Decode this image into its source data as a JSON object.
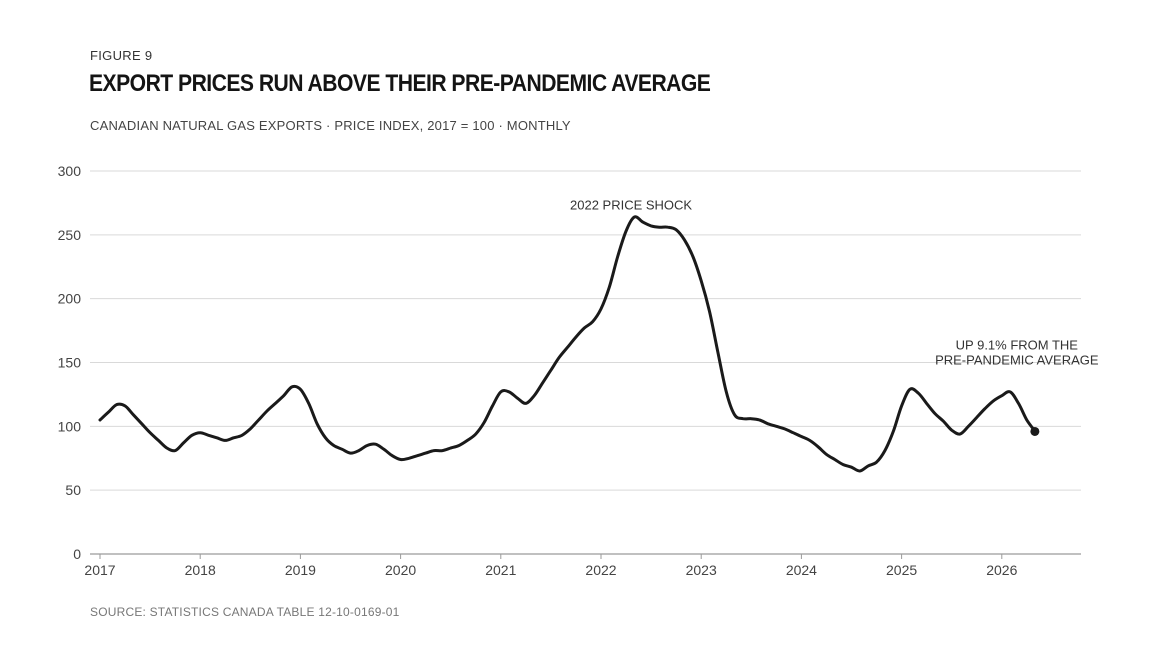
{
  "header": {
    "figure_label": "FIGURE 9",
    "title": "EXPORT PRICES RUN ABOVE THEIR PRE-PANDEMIC AVERAGE",
    "subtitle": "CANADIAN NATURAL GAS EXPORTS · PRICE INDEX, 2017 = 100 · MONTHLY"
  },
  "footer": {
    "source": "SOURCE: STATISTICS CANADA TABLE 12-10-0169-01"
  },
  "colors": {
    "line": "#1a1a1a",
    "grid": "#d9d9d9",
    "axis": "#9a9a9a",
    "tick_text": "#444444"
  },
  "chart_data": {
    "type": "line",
    "title": "EXPORT PRICES RUN ABOVE THEIR PRE-PANDEMIC AVERAGE",
    "subtitle": "CANADIAN NATURAL GAS EXPORTS · PRICE INDEX, 2017 = 100 · MONTHLY",
    "xlabel": "",
    "ylabel": "",
    "xlim": [
      2017.0,
      2027.8
    ],
    "ylim": [
      0,
      300
    ],
    "y_ticks": [
      0,
      50,
      100,
      150,
      200,
      250,
      300
    ],
    "x_ticks": [
      2017,
      2018,
      2019,
      2020,
      2021,
      2022,
      2023,
      2024,
      2025,
      2026
    ],
    "grid": "horizontal",
    "annotations": [
      {
        "text": "2022 PRICE SHOCK",
        "x": 2022.3,
        "y": 270
      },
      {
        "text_lines": [
          "UP 9.1% FROM THE",
          "PRE-PANDEMIC AVERAGE"
        ],
        "x": 2026.15,
        "y": 160
      }
    ],
    "end_marker": {
      "x": 2026.33,
      "y": 96
    },
    "series": [
      {
        "x": [
          2017.0,
          2017.083,
          2017.167,
          2017.25,
          2017.333,
          2017.417,
          2017.5,
          2017.583,
          2017.667,
          2017.75,
          2017.833,
          2017.917,
          2018.0,
          2018.083,
          2018.167,
          2018.25,
          2018.333,
          2018.417,
          2018.5,
          2018.583,
          2018.667,
          2018.75,
          2018.833,
          2018.917,
          2019.0,
          2019.083,
          2019.167,
          2019.25,
          2019.333,
          2019.417,
          2019.5,
          2019.583,
          2019.667,
          2019.75,
          2019.833,
          2019.917,
          2020.0,
          2020.083,
          2020.167,
          2020.25,
          2020.333,
          2020.417,
          2020.5,
          2020.583,
          2020.667,
          2020.75,
          2020.833,
          2020.917,
          2021.0,
          2021.083,
          2021.167,
          2021.25,
          2021.333,
          2021.417,
          2021.5,
          2021.583,
          2021.667,
          2021.75,
          2021.833,
          2021.917,
          2022.0,
          2022.083,
          2022.167,
          2022.25,
          2022.333,
          2022.417,
          2022.5,
          2022.583,
          2022.667,
          2022.75,
          2022.833,
          2022.917,
          2023.0,
          2023.083,
          2023.167,
          2023.25,
          2023.333,
          2023.417,
          2023.5,
          2023.583,
          2023.667,
          2023.75,
          2023.833,
          2023.917,
          2024.0,
          2024.083,
          2024.167,
          2024.25,
          2024.333,
          2024.417,
          2024.5,
          2024.583,
          2024.667,
          2024.75,
          2024.833,
          2024.917,
          2025.0,
          2025.083,
          2025.167,
          2025.25,
          2025.333,
          2025.417,
          2025.5,
          2025.583,
          2025.667,
          2025.75,
          2025.833,
          2025.917,
          2026.0,
          2026.083,
          2026.167,
          2026.25,
          2026.333
        ],
        "values": [
          105,
          111,
          117,
          116,
          109,
          102,
          95,
          89,
          83,
          81,
          87,
          93,
          95,
          93,
          91,
          89,
          91,
          93,
          98,
          105,
          112,
          118,
          124,
          131,
          129,
          118,
          102,
          91,
          85,
          82,
          79,
          81,
          85,
          86,
          82,
          77,
          74,
          75,
          77,
          79,
          81,
          81,
          83,
          85,
          89,
          94,
          103,
          116,
          127,
          127,
          122,
          118,
          124,
          134,
          144,
          154,
          162,
          170,
          177,
          182,
          192,
          209,
          233,
          253,
          264,
          260,
          257,
          256,
          256,
          254,
          246,
          233,
          214,
          190,
          158,
          127,
          109,
          106,
          106,
          105,
          102,
          100,
          98,
          95,
          92,
          89,
          84,
          78,
          74,
          70,
          68,
          65,
          69,
          72,
          81,
          96,
          116,
          129,
          126,
          118,
          110,
          104,
          97,
          94,
          100,
          107,
          114,
          120,
          124,
          127,
          118,
          105,
          96
        ]
      }
    ]
  }
}
